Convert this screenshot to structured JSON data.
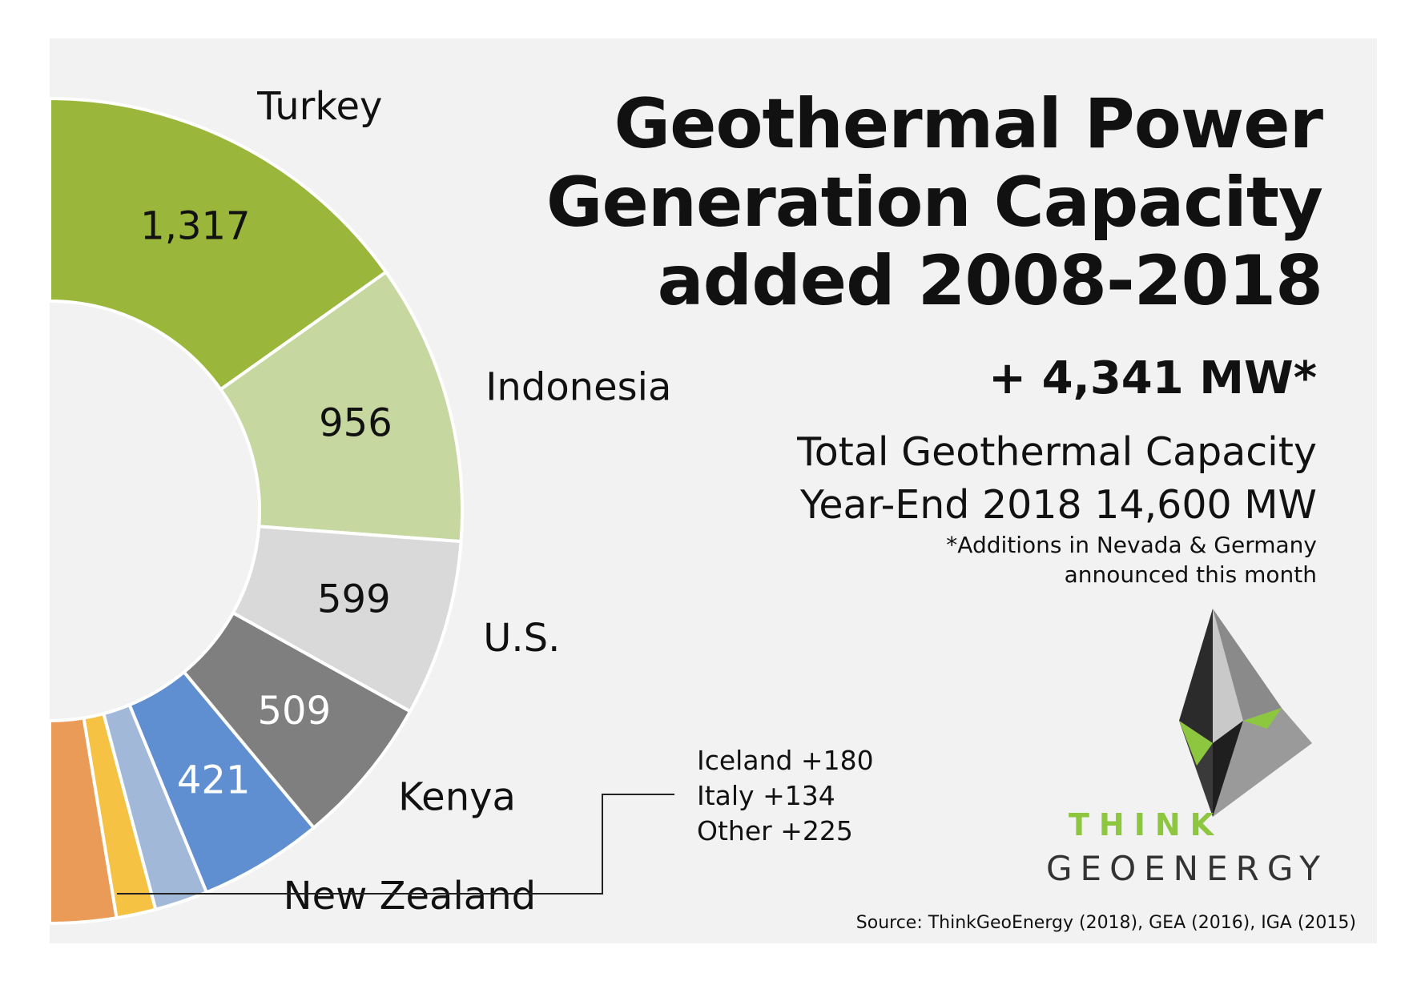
{
  "chart_data": {
    "type": "pie",
    "variant": "donut",
    "title": "Geothermal Power Generation Capacity added 2008-2018",
    "title_lines": [
      "Geothermal Power",
      "Generation Capacity",
      "added 2008-2018"
    ],
    "unit": "MW",
    "slices": [
      {
        "name": "Turkey",
        "value": 1317,
        "value_label": "1,317",
        "color": "#9ab73c",
        "value_text_color": "#111111"
      },
      {
        "name": "Indonesia",
        "value": 956,
        "value_label": "956",
        "color": "#c6d7a0",
        "value_text_color": "#111111"
      },
      {
        "name": "U.S.",
        "value": 599,
        "value_label": "599",
        "color": "#d9d9d9",
        "value_text_color": "#111111"
      },
      {
        "name": "Kenya",
        "value": 509,
        "value_label": "509",
        "color": "#7f7f7f",
        "value_text_color": "#ffffff"
      },
      {
        "name": "New Zealand",
        "value": 421,
        "value_label": "421",
        "color": "#5f8fd0",
        "value_text_color": "#ffffff"
      },
      {
        "name": "Iceland",
        "value": 180,
        "color": "#a2b8d8"
      },
      {
        "name": "Italy",
        "value": 134,
        "color": "#f5c244"
      },
      {
        "name": "Other",
        "value": 225,
        "color": "#ea9b57"
      }
    ],
    "grouped_label_lines": [
      "Iceland +180",
      "Italy +134",
      "Other +225"
    ]
  },
  "headline": {
    "added": "+ 4,341 MW*",
    "total_line1": "Total Geothermal Capacity",
    "total_line2": "Year-End 2018  14,600 MW",
    "footnote_line1": "*Additions in Nevada & Germany",
    "footnote_line2": "announced this month"
  },
  "logo": {
    "word1": "THINK",
    "word2": "GEOENERGY",
    "colors": {
      "green": "#8dc63f",
      "dark": "#2b2b2b",
      "grey": "#9a9a9a"
    }
  },
  "source": "Source: ThinkGeoEnergy (2018), GEA (2016), IGA (2015)"
}
